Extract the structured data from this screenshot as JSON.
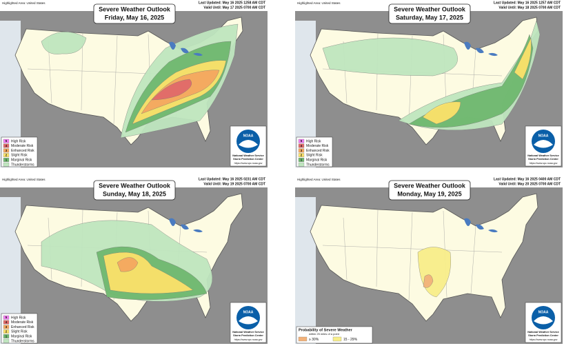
{
  "panels": [
    {
      "highlighted": "Highlighted Area: United States",
      "title": "Severe Weather Outlook",
      "date": "Friday, May 16, 2025",
      "last_updated": "Last Updated: May 16 2025 1258 AM CDT",
      "valid_until": "Valid Until: May 17 2025 0700 AM CDT",
      "legend": [
        {
          "code": "5",
          "label": "High Risk",
          "color": "#f07ef0"
        },
        {
          "code": "4",
          "label": "Moderate Risk",
          "color": "#e06a6a"
        },
        {
          "code": "3",
          "label": "Enhanced Risk",
          "color": "#f5a860"
        },
        {
          "code": "2",
          "label": "Slight Risk",
          "color": "#fbe26a"
        },
        {
          "code": "1",
          "label": "Marginal Risk",
          "color": "#6fb86f"
        },
        {
          "label": "Thunderstorms",
          "color": "#bfe6bf"
        }
      ],
      "logo": {
        "name": "NOAA",
        "line1": "National Weather Service",
        "line2": "Storm Prediction Center",
        "url": "https://www.spc.noaa.gov"
      }
    },
    {
      "highlighted": "Highlighted Area: United States",
      "title": "Severe Weather Outlook",
      "date": "Saturday, May 17, 2025",
      "last_updated": "Last Updated: May 16 2025 1257 AM CDT",
      "valid_until": "Valid Until: May 18 2025 0700 AM CDT",
      "legend": [
        {
          "code": "5",
          "label": "High Risk",
          "color": "#f07ef0"
        },
        {
          "code": "4",
          "label": "Moderate Risk",
          "color": "#e06a6a"
        },
        {
          "code": "3",
          "label": "Enhanced Risk",
          "color": "#f5a860"
        },
        {
          "code": "2",
          "label": "Slight Risk",
          "color": "#fbe26a"
        },
        {
          "code": "1",
          "label": "Marginal Risk",
          "color": "#6fb86f"
        },
        {
          "label": "Thunderstorms",
          "color": "#bfe6bf"
        }
      ],
      "logo": {
        "name": "NOAA",
        "line1": "National Weather Service",
        "line2": "Storm Prediction Center",
        "url": "https://www.spc.noaa.gov"
      }
    },
    {
      "highlighted": "Highlighted Area: United States",
      "title": "Severe Weather Outlook",
      "date": "Sunday, May 18, 2025",
      "last_updated": "Last Updated: May 16 2025 0231 AM CDT",
      "valid_until": "Valid Until: May 19 2025 0700 AM CDT",
      "legend": [
        {
          "code": "5",
          "label": "High Risk",
          "color": "#f07ef0"
        },
        {
          "code": "4",
          "label": "Moderate Risk",
          "color": "#e06a6a"
        },
        {
          "code": "3",
          "label": "Enhanced Risk",
          "color": "#f5a860"
        },
        {
          "code": "2",
          "label": "Slight Risk",
          "color": "#fbe26a"
        },
        {
          "code": "1",
          "label": "Marginal Risk",
          "color": "#6fb86f"
        },
        {
          "label": "Thunderstorms",
          "color": "#bfe6bf"
        }
      ],
      "logo": {
        "name": "NOAA",
        "line1": "National Weather Service",
        "line2": "Storm Prediction Center",
        "url": "https://www.spc.noaa.gov"
      }
    },
    {
      "highlighted": "Highlighted Area: United States",
      "title": "Severe Weather Outlook",
      "date": "Monday, May 19, 2025",
      "last_updated": "Last Updated: May 16 2025 0400 AM CDT",
      "valid_until": "Valid Until: May 20 2025 0700 AM CDT",
      "legend_title": "Probability of Severe Weather",
      "legend_subtitle": "within 25 miles of a point",
      "legend": [
        {
          "label": "≥ 30%",
          "color": "#f2b27a"
        },
        {
          "label": "15 - 29%",
          "color": "#f8ee8a"
        }
      ],
      "logo": {
        "name": "NOAA",
        "line1": "National Weather Service",
        "line2": "Storm Prediction Center",
        "url": "https://www.spc.noaa.gov"
      }
    }
  ]
}
